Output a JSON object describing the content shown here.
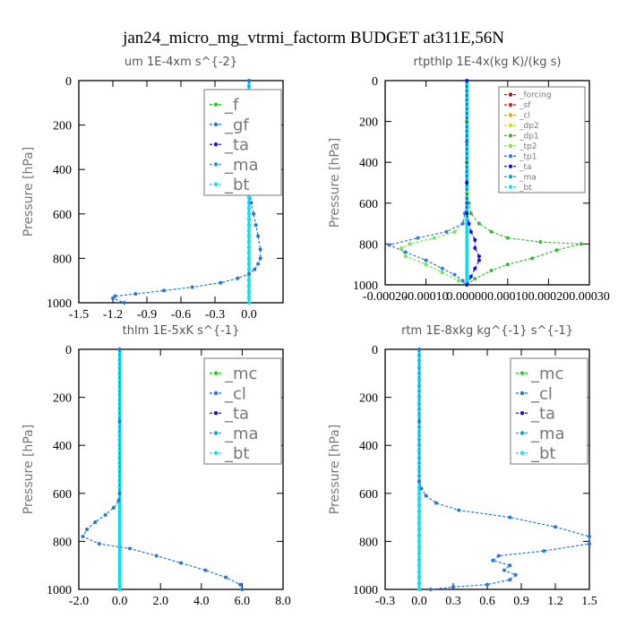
{
  "figure_title": "jan24_micro_mg_vtrmi_factorm  BUDGET at311E,56N",
  "colors": {
    "f": "#22cc22",
    "gf": "#2277dd",
    "ta": "#1111ee",
    "ma": "#00aacc",
    "bt": "#00e8f8",
    "forcing": "#aa1111",
    "sf": "#dd2222",
    "cl": "#eeaa00",
    "dp2": "#dddd00",
    "dp1": "#33bb33",
    "tp2": "#66ee44",
    "tp1": "#3377ee",
    "mc": "#22cc22"
  },
  "chart_data": [
    {
      "type": "line",
      "title": "um  1E-4xm s^{-2}",
      "ylabel": "Pressure [hPa]",
      "xlim": [
        -1.5,
        0.3
      ],
      "ylim": [
        1000,
        0
      ],
      "x_ticks": [
        "-1.5",
        "-1.2",
        "-0.9",
        "-0.6",
        "-0.3",
        "0.0"
      ],
      "x_tick_values": [
        -1.5,
        -1.2,
        -0.9,
        -0.6,
        -0.3,
        0.0
      ],
      "y_ticks": [
        "0",
        "200",
        "400",
        "600",
        "800",
        "1000"
      ],
      "y_tick_values": [
        0,
        200,
        400,
        600,
        800,
        1000
      ],
      "legend_position": "upper-right",
      "legend_font": 18,
      "series": [
        {
          "name": "_f",
          "color": "#22cc22",
          "role": "zero"
        },
        {
          "name": "_gf",
          "color": "#2277dd",
          "x": [
            0,
            0,
            0,
            0,
            0,
            0.01,
            0.02,
            0.04,
            0.06,
            0.08,
            0.1,
            0.1,
            0.08,
            0.05,
            0.0,
            -0.1,
            -0.25,
            -0.5,
            -0.75,
            -1.0,
            -1.18,
            -1.2,
            -1.1
          ],
          "y": [
            0,
            100,
            200,
            300,
            400,
            500,
            550,
            600,
            650,
            700,
            760,
            800,
            825,
            850,
            870,
            890,
            910,
            930,
            945,
            960,
            970,
            980,
            1000
          ]
        },
        {
          "name": "_ta",
          "color": "#1111ee",
          "role": "zero"
        },
        {
          "name": "_ma",
          "color": "#00aacc",
          "role": "zero"
        },
        {
          "name": "_bt",
          "color": "#00e8f8",
          "role": "zero"
        }
      ]
    },
    {
      "type": "line",
      "title": "rtpthlp  1E-4x(kg K)/(kg s)",
      "ylabel": "Pressure [hPa]",
      "xlim": [
        -0.0002,
        0.0003
      ],
      "ylim": [
        1000,
        0
      ],
      "x_ticks": [
        "-0.00020",
        "-0.00010",
        "0.00000",
        "0.00010",
        "0.00020",
        "0.00030"
      ],
      "x_tick_values": [
        -0.0002,
        -0.0001,
        0.0,
        0.0001,
        0.0002,
        0.0003
      ],
      "y_ticks": [
        "0",
        "200",
        "400",
        "600",
        "800",
        "1000"
      ],
      "y_tick_values": [
        0,
        200,
        400,
        600,
        800,
        1000
      ],
      "legend_position": "upper-right",
      "legend_font": 9,
      "series": [
        {
          "name": "_forcing",
          "color": "#aa1111",
          "role": "zero"
        },
        {
          "name": "_sf",
          "color": "#dd2222",
          "role": "zero"
        },
        {
          "name": "_cl",
          "color": "#eeaa00",
          "role": "zero"
        },
        {
          "name": "_dp2",
          "color": "#dddd00",
          "role": "zero"
        },
        {
          "name": "_dp1",
          "color": "#33bb33",
          "x": [
            0,
            0,
            0,
            0,
            0,
            5e-06,
            1e-05,
            3e-05,
            6e-05,
            0.0001,
            0.00018,
            0.00028,
            0.00022,
            0.00016,
            0.0001,
            6e-05,
            2e-05,
            0.0
          ],
          "y": [
            0,
            200,
            400,
            500,
            550,
            600,
            650,
            700,
            740,
            770,
            790,
            800,
            830,
            870,
            900,
            930,
            970,
            1000
          ]
        },
        {
          "name": "_tp2",
          "color": "#66ee44",
          "x": [
            0,
            0,
            0,
            0,
            -1e-05,
            -3e-05,
            -8e-05,
            -0.00014,
            -0.00016,
            -0.00015,
            -0.0001,
            -6e-05,
            -2e-05,
            0.0
          ],
          "y": [
            0,
            300,
            550,
            650,
            700,
            740,
            770,
            800,
            820,
            860,
            900,
            940,
            980,
            1000
          ]
        },
        {
          "name": "_tp1",
          "color": "#3377ee",
          "x": [
            0,
            0,
            0,
            -5e-06,
            -1e-05,
            -5e-05,
            -0.00012,
            -0.00019,
            -0.00015,
            -0.0001,
            -6e-05,
            -3e-05,
            -1e-05,
            0.0
          ],
          "y": [
            0,
            300,
            600,
            650,
            700,
            740,
            770,
            805,
            840,
            880,
            920,
            950,
            980,
            1000
          ]
        },
        {
          "name": "_ta",
          "color": "#1111ee",
          "x": [
            0,
            0,
            0,
            5e-06,
            1e-05,
            2e-05,
            2e-05,
            3e-05,
            3e-05,
            2e-05,
            1e-05,
            0.0
          ],
          "y": [
            0,
            500,
            650,
            700,
            740,
            780,
            820,
            860,
            880,
            920,
            960,
            1000
          ]
        },
        {
          "name": "_ma",
          "color": "#00aacc",
          "role": "zero"
        },
        {
          "name": "_bt",
          "color": "#00e8f8",
          "role": "zero"
        }
      ]
    },
    {
      "type": "line",
      "title": "thlm  1E-5xK s^{-1}",
      "ylabel": "Pressure [hPa]",
      "xlim": [
        -2.0,
        8.0
      ],
      "ylim": [
        1000,
        0
      ],
      "x_ticks": [
        "-2.0",
        "0.0",
        "2.0",
        "4.0",
        "6.0",
        "8.0"
      ],
      "x_tick_values": [
        -2.0,
        0.0,
        2.0,
        4.0,
        6.0,
        8.0
      ],
      "y_ticks": [
        "0",
        "200",
        "400",
        "600",
        "800",
        "1000"
      ],
      "y_tick_values": [
        0,
        200,
        400,
        600,
        800,
        1000
      ],
      "legend_position": "upper-right",
      "legend_font": 18,
      "series": [
        {
          "name": "_mc",
          "color": "#22cc22",
          "role": "zero"
        },
        {
          "name": "_cl",
          "color": "#2277dd",
          "x": [
            0,
            0,
            0,
            -0.05,
            -0.3,
            -0.7,
            -1.2,
            -1.6,
            -1.8,
            -1.0,
            0.5,
            1.8,
            3.0,
            4.2,
            5.2,
            5.9,
            6.0
          ],
          "y": [
            0,
            300,
            600,
            630,
            660,
            690,
            720,
            750,
            780,
            810,
            830,
            860,
            890,
            920,
            950,
            980,
            1000
          ]
        },
        {
          "name": "_ta",
          "color": "#1111ee",
          "role": "zero"
        },
        {
          "name": "_ma",
          "color": "#00aacc",
          "role": "zero"
        },
        {
          "name": "_bt",
          "color": "#00e8f8",
          "role": "zero"
        }
      ]
    },
    {
      "type": "line",
      "title": "rtm  1E-8xkg kg^{-1} s^{-1}",
      "ylabel": "Pressure [hPa]",
      "xlim": [
        -0.3,
        1.5
      ],
      "ylim": [
        1000,
        0
      ],
      "x_ticks": [
        "-0.3",
        "0.0",
        "0.3",
        "0.6",
        "0.9",
        "1.2",
        "1.5"
      ],
      "x_tick_values": [
        -0.3,
        0.0,
        0.3,
        0.6,
        0.9,
        1.2,
        1.5
      ],
      "y_ticks": [
        "0",
        "200",
        "400",
        "600",
        "800",
        "1000"
      ],
      "y_tick_values": [
        0,
        200,
        400,
        600,
        800,
        1000
      ],
      "legend_position": "upper-right",
      "legend_font": 18,
      "series": [
        {
          "name": "_mc",
          "color": "#22cc22",
          "role": "zero"
        },
        {
          "name": "_cl",
          "color": "#2277dd",
          "x": [
            0,
            0,
            0,
            0.02,
            0.06,
            0.15,
            0.35,
            0.8,
            1.2,
            1.5,
            1.5,
            1.1,
            0.7,
            0.65,
            0.8,
            0.75,
            0.85,
            0.8,
            0.6,
            0.3,
            0.1
          ],
          "y": [
            0,
            300,
            550,
            580,
            610,
            640,
            670,
            700,
            740,
            780,
            810,
            840,
            860,
            880,
            900,
            920,
            940,
            960,
            980,
            990,
            1000
          ]
        },
        {
          "name": "_ta",
          "color": "#1111ee",
          "role": "zero"
        },
        {
          "name": "_ma",
          "color": "#00aacc",
          "role": "zero"
        },
        {
          "name": "_bt",
          "color": "#00e8f8",
          "role": "zero"
        }
      ]
    }
  ]
}
